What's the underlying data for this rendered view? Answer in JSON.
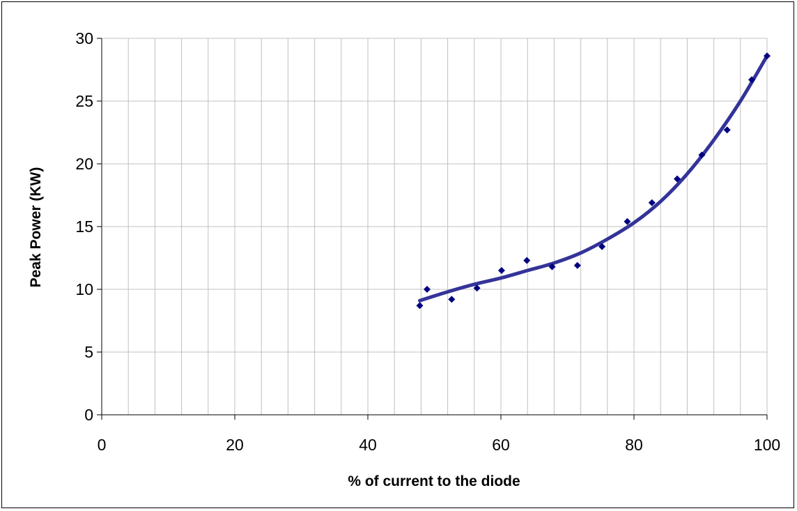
{
  "chart_data": {
    "type": "scatter",
    "title": "",
    "xlabel": "% of current to the diode",
    "ylabel": "Peak Power (KW)",
    "xlim": [
      0,
      100
    ],
    "ylim": [
      0,
      30
    ],
    "x_ticks": [
      0,
      20,
      40,
      60,
      80,
      100
    ],
    "y_ticks": [
      0,
      5,
      10,
      15,
      20,
      25,
      30
    ],
    "x_minor_step": 4,
    "y_major_step": 5,
    "grid": true,
    "legend": "none",
    "series": [
      {
        "type": "scatter",
        "marker": "diamond",
        "color": "#000080",
        "x": [
          47.8,
          48.9,
          52.6,
          56.4,
          60.1,
          63.9,
          67.7,
          71.5,
          75.2,
          79.0,
          82.7,
          86.5,
          90.2,
          94.0,
          97.7,
          100.0
        ],
        "y": [
          8.7,
          10.0,
          9.2,
          10.1,
          11.5,
          12.3,
          11.8,
          11.9,
          13.4,
          15.4,
          16.9,
          18.8,
          20.7,
          22.7,
          26.7,
          28.6
        ]
      },
      {
        "type": "line",
        "style": "trendline",
        "color": "#333399",
        "x": [
          47.8,
          52.0,
          56.0,
          60.0,
          64.0,
          68.0,
          72.0,
          76.0,
          80.0,
          84.0,
          88.0,
          92.0,
          96.0,
          100.0
        ],
        "y": [
          9.1,
          9.8,
          10.4,
          10.9,
          11.5,
          12.1,
          12.9,
          14.0,
          15.3,
          17.0,
          19.2,
          21.9,
          25.0,
          28.6
        ]
      }
    ]
  }
}
